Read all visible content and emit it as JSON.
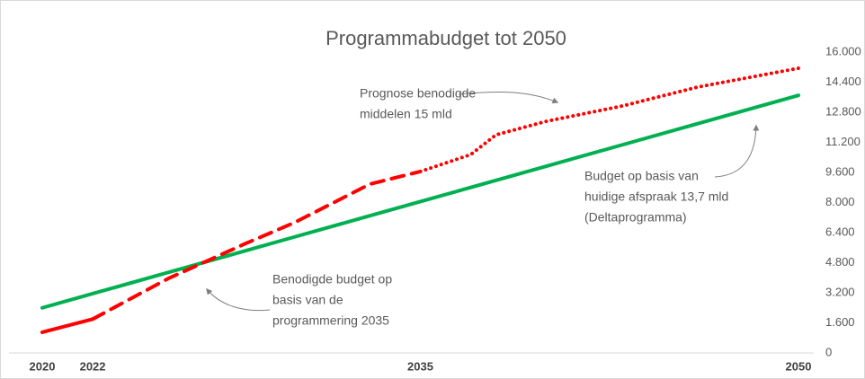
{
  "chart_data": {
    "type": "line",
    "title": "Programmabudget tot 2050",
    "x": [
      2020,
      2022,
      2025,
      2028,
      2030,
      2033,
      2035,
      2037,
      2038,
      2040,
      2043,
      2046,
      2050
    ],
    "xlim": [
      2020,
      2050
    ],
    "xticks": [
      2020,
      2022,
      2035,
      2050
    ],
    "ylim": [
      0,
      16000
    ],
    "yticks": [
      0,
      {
        "value": 1600,
        "label": "1.600"
      },
      {
        "value": 3200,
        "label": "3.200"
      },
      {
        "value": 4800,
        "label": "4.800"
      },
      {
        "value": 6400,
        "label": "6.400"
      },
      {
        "value": 8000,
        "label": "8.000"
      },
      {
        "value": 9600,
        "label": "9.600"
      },
      {
        "value": 11200,
        "label": "11.200"
      },
      {
        "value": 12800,
        "label": "12.800"
      },
      {
        "value": 14400,
        "label": "14.400"
      },
      {
        "value": 16000,
        "label": "16.000"
      }
    ],
    "grid": false,
    "series": [
      {
        "color": "#00b050",
        "dash": "solid",
        "values": [
          2400,
          3153,
          4283,
          5413,
          6167,
          7297,
          8050,
          8803,
          9180,
          9933,
          11063,
          12193,
          13700
        ]
      },
      {
        "color": "#ff0000",
        "dash": "solid",
        "values": [
          1100,
          1800,
          null,
          null,
          null,
          null,
          null,
          null,
          null,
          null,
          null,
          null,
          null
        ]
      },
      {
        "color": "#ff0000",
        "dash": "dashed",
        "values": [
          null,
          1800,
          3960,
          5780,
          6930,
          8980,
          9650,
          null,
          null,
          null,
          null,
          null,
          null
        ]
      },
      {
        "color": "#ff0000",
        "dash": "dotted",
        "values": [
          null,
          null,
          null,
          null,
          null,
          null,
          9650,
          10550,
          11600,
          12320,
          13130,
          14140,
          15140
        ]
      }
    ],
    "annotations": [
      {
        "lines": [
          "Prognose benodigde",
          "middelen 15 mld"
        ]
      },
      {
        "lines": [
          "Budget op basis van",
          "huidige afspraak 13,7 mld",
          "(Deltaprogramma)"
        ]
      },
      {
        "lines": [
          "Benodigde budget op",
          "basis van de",
          "programmering 2035"
        ]
      }
    ]
  }
}
